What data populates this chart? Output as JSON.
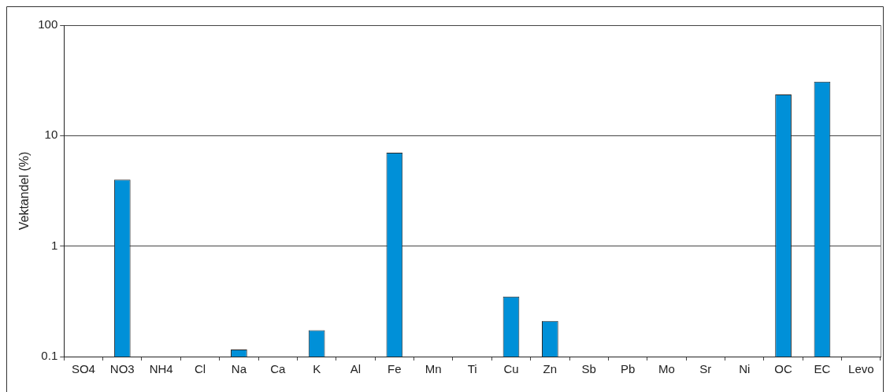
{
  "chart_data": {
    "type": "bar",
    "ylabel": "Vektandel (%)",
    "categories": [
      "SO4",
      "NO3",
      "NH4",
      "Cl",
      "Na",
      "Ca",
      "K",
      "Al",
      "Fe",
      "Mn",
      "Ti",
      "Cu",
      "Zn",
      "Sb",
      "Pb",
      "Mo",
      "Sr",
      "Ni",
      "OC",
      "EC",
      "Levo"
    ],
    "values": [
      null,
      4.0,
      null,
      null,
      0.116,
      null,
      0.173,
      null,
      7.0,
      null,
      null,
      0.35,
      0.21,
      null,
      null,
      null,
      null,
      null,
      23.6,
      30.8,
      null
    ],
    "color": "#0090d8",
    "log": true,
    "ylim": [
      0.1,
      100
    ],
    "yticks": [
      0.1,
      1,
      10,
      100
    ],
    "grid": "y",
    "legend": false
  }
}
